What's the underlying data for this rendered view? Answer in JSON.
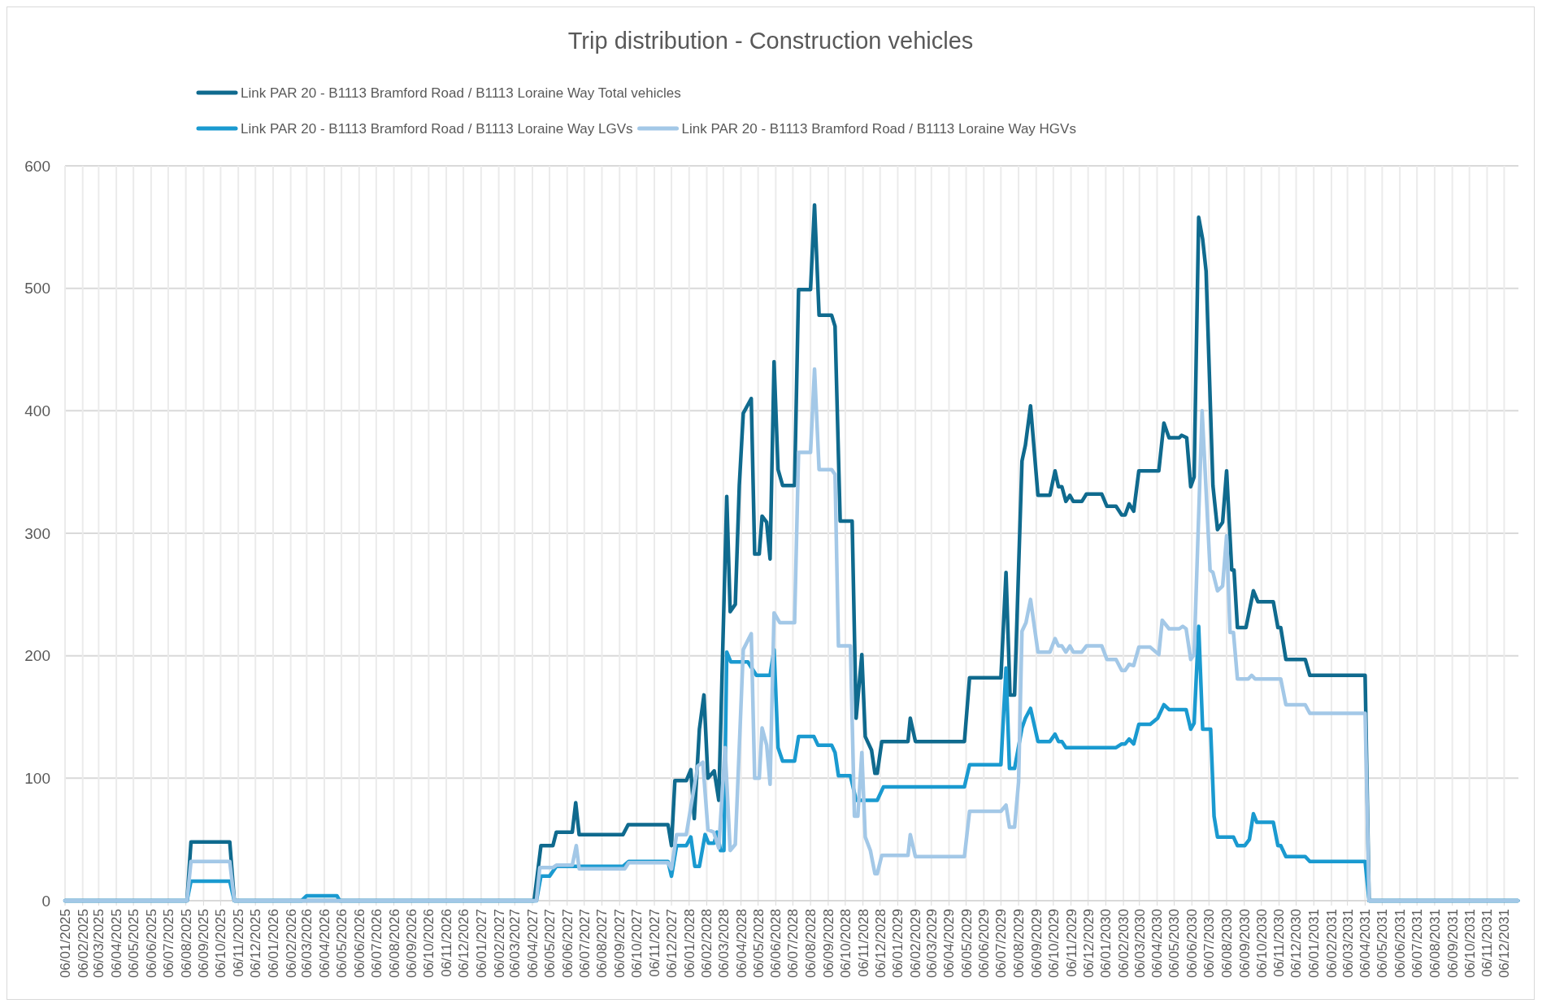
{
  "chart_data": {
    "type": "line",
    "title": "Trip distribution - Construction vehicles",
    "legend": "top",
    "grid": true,
    "line_style": "solid",
    "xlim": [
      "2025-01-06",
      "2031-12-31"
    ],
    "xticks": [
      {
        "value": "2025-01-06",
        "label": "06/01/2025"
      },
      {
        "value": "2025-02-06",
        "label": "06/02/2025"
      },
      {
        "value": "2025-03-06",
        "label": "06/03/2025"
      },
      {
        "value": "2025-04-06",
        "label": "06/04/2025"
      },
      {
        "value": "2025-05-06",
        "label": "06/05/2025"
      },
      {
        "value": "2025-06-06",
        "label": "06/06/2025"
      },
      {
        "value": "2025-07-06",
        "label": "06/07/2025"
      },
      {
        "value": "2025-08-06",
        "label": "06/08/2025"
      },
      {
        "value": "2025-09-06",
        "label": "06/09/2025"
      },
      {
        "value": "2025-10-06",
        "label": "06/10/2025"
      },
      {
        "value": "2025-11-06",
        "label": "06/11/2025"
      },
      {
        "value": "2025-12-06",
        "label": "06/12/2025"
      },
      {
        "value": "2026-01-06",
        "label": "06/01/2026"
      },
      {
        "value": "2026-02-06",
        "label": "06/02/2026"
      },
      {
        "value": "2026-03-06",
        "label": "06/03/2026"
      },
      {
        "value": "2026-04-06",
        "label": "06/04/2026"
      },
      {
        "value": "2026-05-06",
        "label": "06/05/2026"
      },
      {
        "value": "2026-06-06",
        "label": "06/06/2026"
      },
      {
        "value": "2026-07-06",
        "label": "06/07/2026"
      },
      {
        "value": "2026-08-06",
        "label": "06/08/2026"
      },
      {
        "value": "2026-09-06",
        "label": "06/09/2026"
      },
      {
        "value": "2026-10-06",
        "label": "06/10/2026"
      },
      {
        "value": "2026-11-06",
        "label": "06/11/2026"
      },
      {
        "value": "2026-12-06",
        "label": "06/12/2026"
      },
      {
        "value": "2027-01-06",
        "label": "06/01/2027"
      },
      {
        "value": "2027-02-06",
        "label": "06/02/2027"
      },
      {
        "value": "2027-03-06",
        "label": "06/03/2027"
      },
      {
        "value": "2027-04-06",
        "label": "06/04/2027"
      },
      {
        "value": "2027-05-06",
        "label": "06/05/2027"
      },
      {
        "value": "2027-06-06",
        "label": "06/06/2027"
      },
      {
        "value": "2027-07-06",
        "label": "06/07/2027"
      },
      {
        "value": "2027-08-06",
        "label": "06/08/2027"
      },
      {
        "value": "2027-09-06",
        "label": "06/09/2027"
      },
      {
        "value": "2027-10-06",
        "label": "06/10/2027"
      },
      {
        "value": "2027-11-06",
        "label": "06/11/2027"
      },
      {
        "value": "2027-12-06",
        "label": "06/12/2027"
      },
      {
        "value": "2028-01-06",
        "label": "06/01/2028"
      },
      {
        "value": "2028-02-06",
        "label": "06/02/2028"
      },
      {
        "value": "2028-03-06",
        "label": "06/03/2028"
      },
      {
        "value": "2028-04-06",
        "label": "06/04/2028"
      },
      {
        "value": "2028-05-06",
        "label": "06/05/2028"
      },
      {
        "value": "2028-06-06",
        "label": "06/06/2028"
      },
      {
        "value": "2028-07-06",
        "label": "06/07/2028"
      },
      {
        "value": "2028-08-06",
        "label": "06/08/2028"
      },
      {
        "value": "2028-09-06",
        "label": "06/09/2028"
      },
      {
        "value": "2028-10-06",
        "label": "06/10/2028"
      },
      {
        "value": "2028-11-06",
        "label": "06/11/2028"
      },
      {
        "value": "2028-12-06",
        "label": "06/12/2028"
      },
      {
        "value": "2029-01-06",
        "label": "06/01/2029"
      },
      {
        "value": "2029-02-06",
        "label": "06/02/2029"
      },
      {
        "value": "2029-03-06",
        "label": "06/03/2029"
      },
      {
        "value": "2029-04-06",
        "label": "06/04/2029"
      },
      {
        "value": "2029-05-06",
        "label": "06/05/2029"
      },
      {
        "value": "2029-06-06",
        "label": "06/06/2029"
      },
      {
        "value": "2029-07-06",
        "label": "06/07/2029"
      },
      {
        "value": "2029-08-06",
        "label": "06/08/2029"
      },
      {
        "value": "2029-09-06",
        "label": "06/09/2029"
      },
      {
        "value": "2029-10-06",
        "label": "06/10/2029"
      },
      {
        "value": "2029-11-06",
        "label": "06/11/2029"
      },
      {
        "value": "2029-12-06",
        "label": "06/12/2029"
      },
      {
        "value": "2030-01-06",
        "label": "06/01/2030"
      },
      {
        "value": "2030-02-06",
        "label": "06/02/2030"
      },
      {
        "value": "2030-03-06",
        "label": "06/03/2030"
      },
      {
        "value": "2030-04-06",
        "label": "06/04/2030"
      },
      {
        "value": "2030-05-06",
        "label": "06/05/2030"
      },
      {
        "value": "2030-06-06",
        "label": "06/06/2030"
      },
      {
        "value": "2030-07-06",
        "label": "06/07/2030"
      },
      {
        "value": "2030-08-06",
        "label": "06/08/2030"
      },
      {
        "value": "2030-09-06",
        "label": "06/09/2030"
      },
      {
        "value": "2030-10-06",
        "label": "06/10/2030"
      },
      {
        "value": "2030-11-06",
        "label": "06/11/2030"
      },
      {
        "value": "2030-12-06",
        "label": "06/12/2030"
      },
      {
        "value": "2031-01-06",
        "label": "06/01/2031"
      },
      {
        "value": "2031-02-06",
        "label": "06/02/2031"
      },
      {
        "value": "2031-03-06",
        "label": "06/03/2031"
      },
      {
        "value": "2031-04-06",
        "label": "06/04/2031"
      },
      {
        "value": "2031-05-06",
        "label": "06/05/2031"
      },
      {
        "value": "2031-06-06",
        "label": "06/06/2031"
      },
      {
        "value": "2031-07-06",
        "label": "06/07/2031"
      },
      {
        "value": "2031-08-06",
        "label": "06/08/2031"
      },
      {
        "value": "2031-09-06",
        "label": "06/09/2031"
      },
      {
        "value": "2031-10-06",
        "label": "06/10/2031"
      },
      {
        "value": "2031-11-06",
        "label": "06/11/2031"
      },
      {
        "value": "2031-12-06",
        "label": "06/12/2031"
      }
    ],
    "ylim": [
      0,
      600
    ],
    "yticks": [
      0,
      100,
      200,
      300,
      400,
      500,
      600
    ],
    "series": [
      {
        "name": "Link PAR 20 - B1113 Bramford Road / B1113 Loraine Way Total vehicles",
        "color": "#0f6a8e",
        "x": [
          "2025-01-06",
          "2025-08-08",
          "2025-08-15",
          "2025-10-22",
          "2025-10-30",
          "2027-04-09",
          "2027-04-21",
          "2027-05-12",
          "2027-05-18",
          "2027-06-15",
          "2027-06-21",
          "2027-06-27",
          "2027-09-12",
          "2027-09-21",
          "2027-11-30",
          "2027-12-06",
          "2027-12-12",
          "2028-01-01",
          "2028-01-09",
          "2028-01-15",
          "2028-01-24",
          "2028-02-01",
          "2028-02-08",
          "2028-02-19",
          "2028-02-27",
          "2028-03-12",
          "2028-03-18",
          "2028-03-27",
          "2028-04-03",
          "2028-04-10",
          "2028-04-24",
          "2028-04-30",
          "2028-05-08",
          "2028-05-13",
          "2028-05-21",
          "2028-05-27",
          "2028-06-03",
          "2028-06-10",
          "2028-06-18",
          "2028-07-09",
          "2028-07-16",
          "2028-08-06",
          "2028-08-13",
          "2028-08-21",
          "2028-09-12",
          "2028-09-18",
          "2028-09-27",
          "2028-10-18",
          "2028-10-25",
          "2028-11-04",
          "2028-11-10",
          "2028-11-21",
          "2028-11-27",
          "2028-12-01",
          "2028-12-09",
          "2029-01-24",
          "2029-01-28",
          "2029-02-06",
          "2029-05-03",
          "2029-05-12",
          "2029-07-06",
          "2029-07-15",
          "2029-07-22",
          "2029-07-30",
          "2029-08-12",
          "2029-08-18",
          "2029-08-27",
          "2029-09-09",
          "2029-09-30",
          "2029-10-09",
          "2029-10-15",
          "2029-10-21",
          "2029-10-28",
          "2029-11-04",
          "2029-11-10",
          "2029-11-25",
          "2029-12-03",
          "2029-12-30",
          "2030-01-08",
          "2030-01-24",
          "2030-02-03",
          "2030-02-09",
          "2030-02-16",
          "2030-02-24",
          "2030-03-05",
          "2030-04-09",
          "2030-04-18",
          "2030-04-27",
          "2030-05-15",
          "2030-05-19",
          "2030-05-28",
          "2030-06-04",
          "2030-06-10",
          "2030-06-18",
          "2030-06-25",
          "2030-07-01",
          "2030-07-13",
          "2030-07-21",
          "2030-07-30",
          "2030-08-06",
          "2030-08-15",
          "2030-08-19",
          "2030-08-25",
          "2030-09-09",
          "2030-09-22",
          "2030-09-30",
          "2030-10-27",
          "2030-11-04",
          "2030-11-09",
          "2030-11-18",
          "2030-12-22",
          "2030-12-30",
          "2031-04-06",
          "2031-04-13",
          "2031-12-30"
        ],
        "values": [
          0,
          0,
          48,
          48,
          0,
          0,
          45,
          45,
          56,
          56,
          80,
          54,
          54,
          62,
          62,
          45,
          98,
          98,
          107,
          67,
          140,
          168,
          100,
          106,
          82,
          330,
          236,
          242,
          339,
          398,
          410,
          283,
          283,
          314,
          309,
          279,
          440,
          352,
          339,
          339,
          499,
          499,
          568,
          478,
          478,
          469,
          310,
          310,
          149,
          201,
          134,
          123,
          104,
          104,
          130,
          130,
          149,
          130,
          130,
          182,
          182,
          268,
          168,
          168,
          359,
          372,
          404,
          331,
          331,
          351,
          338,
          338,
          326,
          331,
          326,
          326,
          332,
          332,
          322,
          322,
          315,
          315,
          324,
          318,
          351,
          351,
          390,
          378,
          378,
          380,
          378,
          338,
          346,
          558,
          540,
          514,
          339,
          303,
          309,
          351,
          270,
          270,
          223,
          223,
          253,
          244,
          244,
          223,
          223,
          197,
          197,
          184,
          184,
          0,
          0
        ]
      },
      {
        "name": "Link PAR 20 - B1113 Bramford Road / B1113 Loraine Way LGVs",
        "color": "#1a9ad0",
        "x": [
          "2025-01-06",
          "2025-08-08",
          "2025-08-15",
          "2025-10-22",
          "2025-10-30",
          "2026-02-25",
          "2026-03-06",
          "2026-04-28",
          "2026-05-03",
          "2027-04-13",
          "2027-04-21",
          "2027-05-06",
          "2027-05-18",
          "2027-09-12",
          "2027-09-22",
          "2027-11-30",
          "2027-12-06",
          "2027-12-15",
          "2028-01-01",
          "2028-01-09",
          "2028-01-16",
          "2028-01-24",
          "2028-02-03",
          "2028-02-09",
          "2028-02-19",
          "2028-02-24",
          "2028-03-01",
          "2028-03-07",
          "2028-03-12",
          "2028-03-19",
          "2028-04-18",
          "2028-05-03",
          "2028-05-27",
          "2028-06-03",
          "2028-06-10",
          "2028-06-18",
          "2028-07-09",
          "2028-07-16",
          "2028-08-12",
          "2028-08-19",
          "2028-09-12",
          "2028-09-18",
          "2028-09-24",
          "2028-10-15",
          "2028-10-25",
          "2028-12-01",
          "2028-12-12",
          "2029-05-03",
          "2029-05-12",
          "2029-07-06",
          "2029-07-15",
          "2029-07-21",
          "2029-07-30",
          "2029-08-12",
          "2029-08-18",
          "2029-08-27",
          "2029-09-09",
          "2029-09-30",
          "2029-10-09",
          "2029-10-15",
          "2029-10-21",
          "2029-10-28",
          "2030-01-24",
          "2030-02-03",
          "2030-02-09",
          "2030-02-16",
          "2030-02-24",
          "2030-03-05",
          "2030-03-25",
          "2030-04-07",
          "2030-04-18",
          "2030-04-27",
          "2030-05-27",
          "2030-06-04",
          "2030-06-10",
          "2030-06-18",
          "2030-06-25",
          "2030-07-09",
          "2030-07-15",
          "2030-07-21",
          "2030-08-18",
          "2030-08-25",
          "2030-09-07",
          "2030-09-15",
          "2030-09-22",
          "2030-09-28",
          "2030-10-27",
          "2030-11-04",
          "2030-11-09",
          "2030-11-18",
          "2030-12-22",
          "2030-12-30",
          "2031-04-06",
          "2031-04-13",
          "2031-12-30"
        ],
        "values": [
          0,
          0,
          16,
          16,
          0,
          0,
          4,
          4,
          0,
          0,
          20,
          20,
          28,
          28,
          32,
          32,
          20,
          45,
          45,
          52,
          28,
          28,
          54,
          47,
          47,
          56,
          41,
          41,
          203,
          195,
          195,
          184,
          184,
          205,
          125,
          114,
          114,
          134,
          134,
          127,
          127,
          121,
          102,
          102,
          82,
          82,
          93,
          93,
          111,
          111,
          190,
          108,
          108,
          141,
          149,
          157,
          130,
          130,
          136,
          130,
          130,
          125,
          125,
          128,
          128,
          132,
          128,
          144,
          144,
          149,
          160,
          156,
          156,
          140,
          145,
          224,
          140,
          140,
          69,
          52,
          52,
          45,
          45,
          50,
          71,
          64,
          64,
          45,
          45,
          36,
          36,
          32,
          32,
          0,
          0
        ]
      },
      {
        "name": "Link PAR 20 - B1113 Bramford Road / B1113 Loraine Way HGVs",
        "color": "#a3c8e7",
        "x": [
          "2025-01-06",
          "2025-08-08",
          "2025-08-15",
          "2025-10-22",
          "2025-10-30",
          "2027-04-13",
          "2027-04-19",
          "2027-05-12",
          "2027-05-18",
          "2027-06-15",
          "2027-06-22",
          "2027-06-27",
          "2027-09-15",
          "2027-09-22",
          "2027-11-30",
          "2027-12-06",
          "2027-12-15",
          "2028-01-01",
          "2028-01-21",
          "2028-01-30",
          "2028-02-08",
          "2028-02-18",
          "2028-02-27",
          "2028-03-09",
          "2028-03-18",
          "2028-03-27",
          "2028-04-10",
          "2028-04-24",
          "2028-04-30",
          "2028-05-08",
          "2028-05-13",
          "2028-05-21",
          "2028-05-27",
          "2028-06-03",
          "2028-06-13",
          "2028-07-09",
          "2028-07-16",
          "2028-08-06",
          "2028-08-13",
          "2028-08-21",
          "2028-09-12",
          "2028-09-18",
          "2028-09-24",
          "2028-10-15",
          "2028-10-22",
          "2028-10-28",
          "2028-11-04",
          "2028-11-10",
          "2028-11-19",
          "2028-11-27",
          "2028-12-01",
          "2028-12-09",
          "2029-01-24",
          "2029-01-28",
          "2029-02-06",
          "2029-05-03",
          "2029-05-12",
          "2029-07-06",
          "2029-07-15",
          "2029-07-21",
          "2029-07-30",
          "2029-08-06",
          "2029-08-12",
          "2029-08-19",
          "2029-08-27",
          "2029-09-09",
          "2029-09-30",
          "2029-10-09",
          "2029-10-15",
          "2029-10-21",
          "2029-10-28",
          "2029-11-04",
          "2029-11-10",
          "2029-11-25",
          "2029-12-03",
          "2029-12-30",
          "2030-01-08",
          "2030-01-24",
          "2030-02-03",
          "2030-02-09",
          "2030-02-16",
          "2030-02-24",
          "2030-03-05",
          "2030-03-25",
          "2030-04-09",
          "2030-04-15",
          "2030-04-27",
          "2030-05-15",
          "2030-05-21",
          "2030-05-27",
          "2030-06-04",
          "2030-06-10",
          "2030-06-24",
          "2030-07-08",
          "2030-07-13",
          "2030-07-21",
          "2030-07-30",
          "2030-08-06",
          "2030-08-12",
          "2030-08-18",
          "2030-08-25",
          "2030-09-13",
          "2030-09-19",
          "2030-09-25",
          "2030-11-09",
          "2030-11-18",
          "2030-12-22",
          "2030-12-30",
          "2031-04-06",
          "2031-04-13",
          "2031-12-30"
        ],
        "values": [
          0,
          0,
          32,
          32,
          0,
          0,
          27,
          27,
          29,
          29,
          45,
          26,
          26,
          31,
          31,
          26,
          54,
          54,
          110,
          113,
          58,
          56,
          43,
          125,
          41,
          46,
          205,
          218,
          100,
          100,
          141,
          127,
          95,
          235,
          227,
          227,
          366,
          366,
          434,
          352,
          352,
          348,
          208,
          208,
          69,
          69,
          121,
          52,
          41,
          22,
          22,
          37,
          37,
          54,
          36,
          36,
          73,
          73,
          78,
          60,
          60,
          97,
          220,
          227,
          246,
          203,
          203,
          214,
          208,
          208,
          203,
          208,
          203,
          203,
          208,
          208,
          197,
          197,
          188,
          188,
          193,
          192,
          207,
          207,
          201,
          229,
          222,
          222,
          224,
          222,
          197,
          201,
          400,
          270,
          268,
          253,
          257,
          298,
          219,
          219,
          181,
          181,
          184,
          181,
          181,
          160,
          160,
          153,
          153,
          0,
          0
        ]
      }
    ]
  }
}
